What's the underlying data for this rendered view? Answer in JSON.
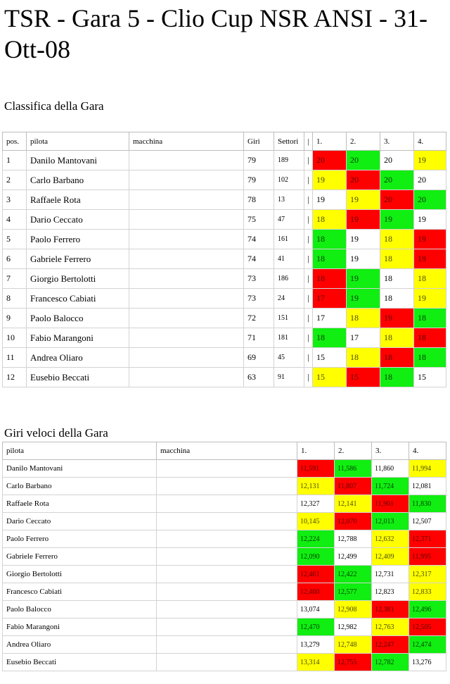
{
  "title": "TSR - Gara 5 - Clio Cup NSR ANSI - 31-Ott-08",
  "race": {
    "heading": "Classifica della Gara",
    "headers": {
      "pos": "pos.",
      "pilota": "pilota",
      "macchina": "macchina",
      "giri": "Giri",
      "settori": "Settori",
      "sep": "|",
      "l1": "1.",
      "l2": "2.",
      "l3": "3.",
      "l4": "4."
    },
    "rows": [
      {
        "pos": "1",
        "pilota": "Danilo Mantovani",
        "macchina": "",
        "giri": "79",
        "settori": "189",
        "sep": "|",
        "lanes": [
          "20",
          "20",
          "20",
          "19"
        ],
        "colors": [
          "red",
          "green",
          "white",
          "yellow"
        ]
      },
      {
        "pos": "2",
        "pilota": "Carlo Barbano",
        "macchina": "",
        "giri": "79",
        "settori": "102",
        "sep": "|",
        "lanes": [
          "19",
          "20",
          "20",
          "20"
        ],
        "colors": [
          "yellow",
          "red",
          "green",
          "white"
        ]
      },
      {
        "pos": "3",
        "pilota": "Raffaele Rota",
        "macchina": "",
        "giri": "78",
        "settori": "13",
        "sep": "|",
        "lanes": [
          "19",
          "19",
          "20",
          "20"
        ],
        "colors": [
          "white",
          "yellow",
          "red",
          "green"
        ]
      },
      {
        "pos": "4",
        "pilota": "Dario Ceccato",
        "macchina": "",
        "giri": "75",
        "settori": "47",
        "sep": "|",
        "lanes": [
          "18",
          "19",
          "19",
          "19"
        ],
        "colors": [
          "yellow",
          "red",
          "green",
          "white"
        ]
      },
      {
        "pos": "5",
        "pilota": "Paolo Ferrero",
        "macchina": "",
        "giri": "74",
        "settori": "161",
        "sep": "|",
        "lanes": [
          "18",
          "19",
          "18",
          "19"
        ],
        "colors": [
          "green",
          "white",
          "yellow",
          "red"
        ]
      },
      {
        "pos": "6",
        "pilota": "Gabriele Ferrero",
        "macchina": "",
        "giri": "74",
        "settori": "41",
        "sep": "|",
        "lanes": [
          "18",
          "19",
          "18",
          "19"
        ],
        "colors": [
          "green",
          "white",
          "yellow",
          "red"
        ]
      },
      {
        "pos": "7",
        "pilota": "Giorgio Bertolotti",
        "macchina": "",
        "giri": "73",
        "settori": "186",
        "sep": "|",
        "lanes": [
          "18",
          "19",
          "18",
          "18"
        ],
        "colors": [
          "red",
          "green",
          "white",
          "yellow"
        ]
      },
      {
        "pos": "8",
        "pilota": "Francesco Cabiati",
        "macchina": "",
        "giri": "73",
        "settori": "24",
        "sep": "|",
        "lanes": [
          "17",
          "19",
          "18",
          "19"
        ],
        "colors": [
          "red",
          "green",
          "white",
          "yellow"
        ]
      },
      {
        "pos": "9",
        "pilota": "Paolo Balocco",
        "macchina": "",
        "giri": "72",
        "settori": "151",
        "sep": "|",
        "lanes": [
          "17",
          "18",
          "19",
          "18"
        ],
        "colors": [
          "white",
          "yellow",
          "red",
          "green"
        ]
      },
      {
        "pos": "10",
        "pilota": "Fabio Marangoni",
        "macchina": "",
        "giri": "71",
        "settori": "181",
        "sep": "|",
        "lanes": [
          "18",
          "17",
          "18",
          "18"
        ],
        "colors": [
          "green",
          "white",
          "yellow",
          "red"
        ]
      },
      {
        "pos": "11",
        "pilota": "Andrea Oliaro",
        "macchina": "",
        "giri": "69",
        "settori": "45",
        "sep": "|",
        "lanes": [
          "15",
          "18",
          "18",
          "18"
        ],
        "colors": [
          "white",
          "yellow",
          "red",
          "green"
        ]
      },
      {
        "pos": "12",
        "pilota": "Eusebio Beccati",
        "macchina": "",
        "giri": "63",
        "settori": "91",
        "sep": "|",
        "lanes": [
          "15",
          "15",
          "18",
          "15"
        ],
        "colors": [
          "yellow",
          "red",
          "green",
          "white"
        ]
      }
    ]
  },
  "fast_laps": {
    "heading": "Giri veloci della Gara",
    "headers": {
      "pilota": "pilota",
      "macchina": "macchina",
      "l1": "1.",
      "l2": "2.",
      "l3": "3.",
      "l4": "4."
    },
    "rows": [
      {
        "pilota": "Danilo Mantovani",
        "macchina": "",
        "laps": [
          "11,591",
          "11,586",
          "11,860",
          "11,994"
        ],
        "colors": [
          "red",
          "green",
          "white",
          "yellow"
        ]
      },
      {
        "pilota": "Carlo Barbano",
        "macchina": "",
        "laps": [
          "12,131",
          "11,807",
          "11,724",
          "12,081"
        ],
        "colors": [
          "yellow",
          "red",
          "green",
          "white"
        ]
      },
      {
        "pilota": "Raffaele Rota",
        "macchina": "",
        "laps": [
          "12,327",
          "12,141",
          "11,901",
          "11,830"
        ],
        "colors": [
          "white",
          "yellow",
          "red",
          "green"
        ]
      },
      {
        "pilota": "Dario Ceccato",
        "macchina": "",
        "laps": [
          "10,145",
          "12,070",
          "12,013",
          "12,507"
        ],
        "colors": [
          "yellow",
          "red",
          "green",
          "white"
        ]
      },
      {
        "pilota": "Paolo Ferrero",
        "macchina": "",
        "laps": [
          "12,224",
          "12,788",
          "12,632",
          "12,371"
        ],
        "colors": [
          "green",
          "white",
          "yellow",
          "red"
        ]
      },
      {
        "pilota": "Gabriele Ferrero",
        "macchina": "",
        "laps": [
          "12,090",
          "12,499",
          "12,409",
          "11,995"
        ],
        "colors": [
          "green",
          "white",
          "yellow",
          "red"
        ]
      },
      {
        "pilota": "Giorgio Bertolotti",
        "macchina": "",
        "laps": [
          "12,461",
          "12,422",
          "12,731",
          "12,317"
        ],
        "colors": [
          "red",
          "green",
          "white",
          "yellow"
        ]
      },
      {
        "pilota": "Francesco Cabiati",
        "macchina": "",
        "laps": [
          "12,460",
          "12,577",
          "12,823",
          "12,833"
        ],
        "colors": [
          "red",
          "green",
          "white",
          "yellow"
        ]
      },
      {
        "pilota": "Paolo Balocco",
        "macchina": "",
        "laps": [
          "13,074",
          "12,908",
          "12,381",
          "12,496"
        ],
        "colors": [
          "white",
          "yellow",
          "red",
          "green"
        ]
      },
      {
        "pilota": "Fabio Marangoni",
        "macchina": "",
        "laps": [
          "12,470",
          "12,982",
          "12,763",
          "12,505"
        ],
        "colors": [
          "green",
          "white",
          "yellow",
          "red"
        ]
      },
      {
        "pilota": "Andrea Oliaro",
        "macchina": "",
        "laps": [
          "13,279",
          "12,748",
          "12,247",
          "12,474"
        ],
        "colors": [
          "white",
          "yellow",
          "red",
          "green"
        ]
      },
      {
        "pilota": "Eusebio Beccati",
        "macchina": "",
        "laps": [
          "13,314",
          "12,755",
          "12,782",
          "13,276"
        ],
        "colors": [
          "yellow",
          "red",
          "green",
          "white"
        ]
      }
    ]
  },
  "lane_colors": {
    "red": "#ff0000",
    "green": "#11ee11",
    "yellow": "#ffff00",
    "white": "#ffffff"
  }
}
